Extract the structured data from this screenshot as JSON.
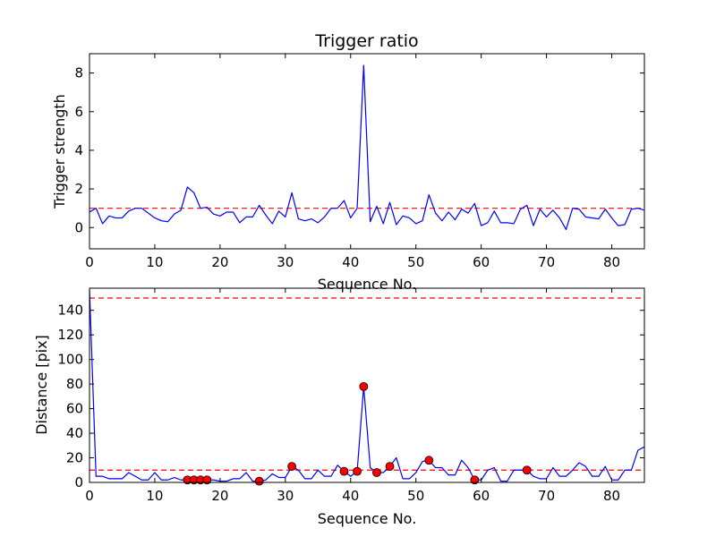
{
  "chart_data": [
    {
      "type": "line",
      "title": "Trigger ratio",
      "xlabel": "Sequence No.",
      "ylabel": "Trigger strength",
      "xlim": [
        0,
        85
      ],
      "ylim": [
        -1.1,
        9.0
      ],
      "xticks": [
        0,
        10,
        20,
        30,
        40,
        50,
        60,
        70,
        80
      ],
      "yticks": [
        0,
        2,
        4,
        6,
        8
      ],
      "grid": false,
      "threshold": 1.0,
      "line_color": "#0000ff",
      "threshold_color": "#ff0000",
      "series": [
        {
          "values": [
            0.8,
            1.0,
            0.2,
            0.6,
            0.5,
            0.5,
            0.85,
            1.0,
            1.0,
            0.75,
            0.5,
            0.35,
            0.3,
            0.7,
            0.9,
            2.1,
            1.8,
            1.0,
            1.05,
            0.7,
            0.6,
            0.8,
            0.8,
            0.25,
            0.55,
            0.55,
            1.15,
            0.65,
            0.2,
            0.85,
            0.55,
            1.8,
            0.45,
            0.35,
            0.45,
            0.25,
            0.55,
            1.0,
            1.0,
            1.4,
            0.5,
            1.0,
            8.4,
            0.3,
            1.1,
            0.2,
            1.3,
            0.15,
            0.6,
            0.5,
            0.2,
            0.35,
            1.7,
            0.75,
            0.35,
            0.8,
            0.4,
            0.95,
            0.75,
            1.25,
            0.1,
            0.25,
            0.85,
            0.25,
            0.25,
            0.2,
            0.95,
            1.15,
            0.1,
            0.95,
            0.55,
            0.9,
            0.5,
            -0.1,
            1.0,
            0.95,
            0.55,
            0.5,
            0.45,
            0.95,
            0.5,
            0.1,
            0.15,
            0.95,
            1.0,
            0.9
          ]
        }
      ]
    },
    {
      "type": "line",
      "title": "",
      "xlabel": "Sequence No.",
      "ylabel": "Distance [pix]",
      "xlim": [
        0,
        85
      ],
      "ylim": [
        0,
        158
      ],
      "xticks": [
        0,
        10,
        20,
        30,
        40,
        50,
        60,
        70,
        80
      ],
      "yticks": [
        0,
        20,
        40,
        60,
        80,
        100,
        120,
        140
      ],
      "grid": false,
      "thresholds": [
        10,
        150
      ],
      "line_color": "#0000ff",
      "threshold_color": "#ff0000",
      "marker_color": "#ff0000",
      "series": [
        {
          "values": [
            157,
            5,
            5,
            3,
            3,
            3,
            8,
            5,
            2,
            2,
            8,
            2,
            2,
            4,
            2,
            2,
            2,
            2,
            2,
            2,
            1,
            1,
            3,
            3,
            8,
            1,
            1,
            2,
            7,
            4,
            4,
            13,
            10,
            3,
            3,
            10,
            5,
            5,
            14,
            9,
            5,
            9,
            78,
            12,
            8,
            8,
            13,
            20,
            3,
            3,
            8,
            17,
            18,
            12,
            12,
            6,
            6,
            18,
            12,
            2,
            2,
            10,
            12,
            1,
            1,
            10,
            10,
            10,
            5,
            3,
            3,
            12,
            5,
            5,
            10,
            16,
            13,
            5,
            5,
            13,
            2,
            2,
            10,
            10,
            26,
            29
          ]
        }
      ],
      "markers": {
        "x": [
          15,
          16,
          17,
          18,
          26,
          31,
          39,
          41,
          42,
          44,
          46,
          52,
          59,
          67
        ],
        "y": [
          2,
          2,
          2,
          2,
          1,
          13,
          9,
          9,
          78,
          8,
          13,
          18,
          2,
          10
        ]
      }
    }
  ]
}
